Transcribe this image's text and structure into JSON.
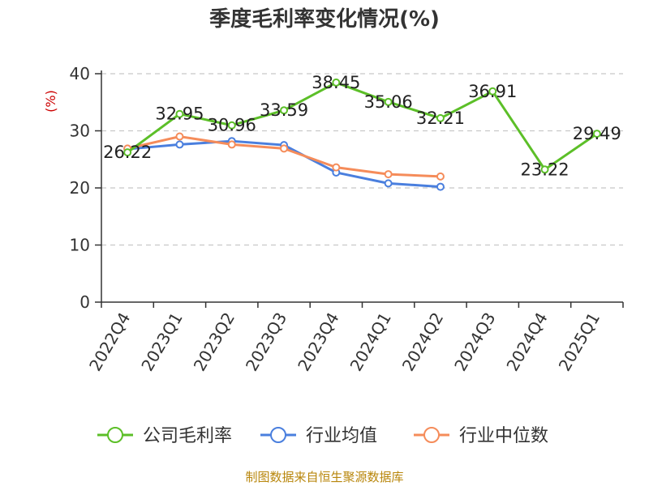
{
  "chart_data": {
    "type": "line",
    "title": "季度毛利率变化情况(%)",
    "ylabel": "(%)",
    "ylim": [
      0,
      40
    ],
    "yticks": [
      0,
      10,
      20,
      30,
      40
    ],
    "grid": true,
    "legend_position": "bottom",
    "categories": [
      "2022Q4",
      "2023Q1",
      "2023Q2",
      "2023Q3",
      "2023Q4",
      "2024Q1",
      "2024Q2",
      "2024Q3",
      "2024Q4",
      "2025Q1"
    ],
    "series": [
      {
        "name": "公司毛利率",
        "color": "#5cbf28",
        "values": [
          26.22,
          32.95,
          30.96,
          33.59,
          38.45,
          35.06,
          32.21,
          36.91,
          23.22,
          29.49
        ],
        "labels": [
          "26.22",
          "32.95",
          "30.96",
          "33.59",
          "38.45",
          "35.06",
          "32.21",
          "36.91",
          "23.22",
          "29.49"
        ]
      },
      {
        "name": "行业均值",
        "color": "#4a7fde",
        "values": [
          26.8,
          27.6,
          28.2,
          27.5,
          22.7,
          20.8,
          20.2,
          null,
          null,
          null
        ]
      },
      {
        "name": "行业中位数",
        "color": "#f58c5a",
        "values": [
          26.9,
          29.0,
          27.6,
          26.9,
          23.6,
          22.4,
          22.0,
          null,
          null,
          null
        ]
      }
    ],
    "source": "制图数据来自恒生聚源数据库",
    "ylabel_color": "#cc0000",
    "source_color": "#b8860b"
  }
}
